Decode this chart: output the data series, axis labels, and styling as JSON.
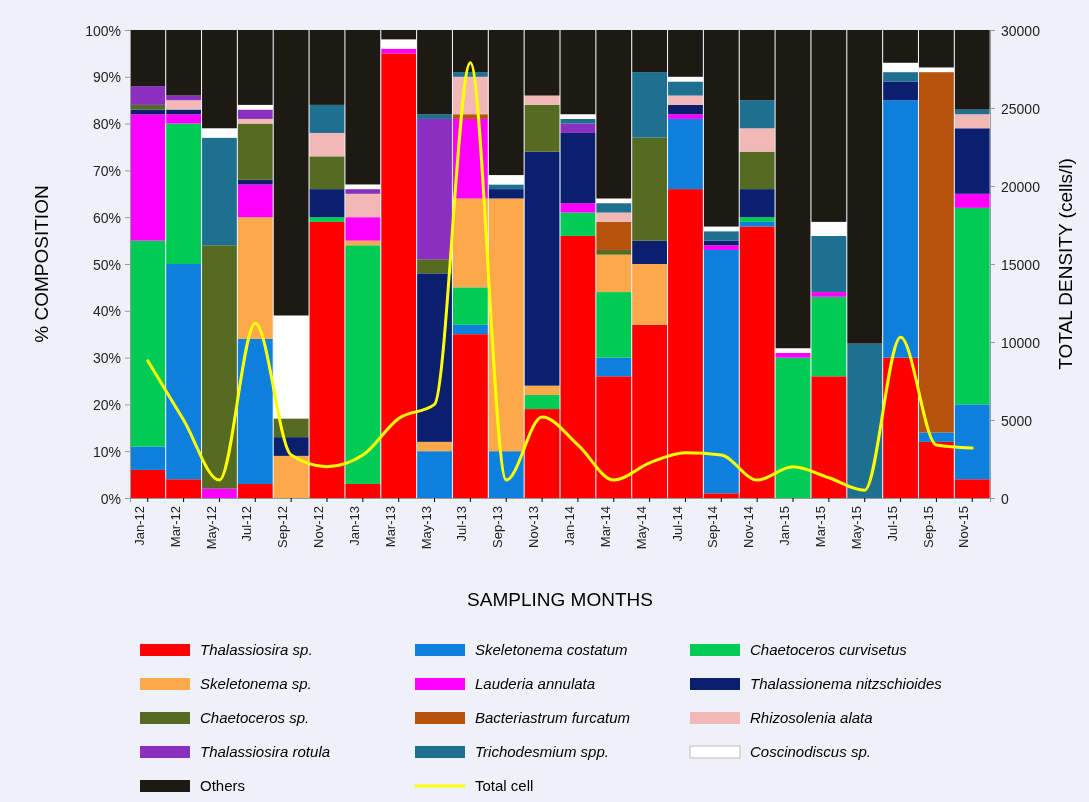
{
  "chart_data": {
    "type": "bar",
    "stacked": true,
    "xlabel": "SAMPLING MONTHS",
    "ylabel": "% COMPOSITION",
    "y2label": "TOTAL DENSITY (cells/l)",
    "categories": [
      "Jan-12",
      "Mar-12",
      "May-12",
      "Jul-12",
      "Sep-12",
      "Nov-12",
      "Jan-13",
      "Mar-13",
      "May-13",
      "Jul-13",
      "Sep-13",
      "Nov-13",
      "Jan-14",
      "Mar-14",
      "May-14",
      "Jul-14",
      "Sep-14",
      "Nov-14",
      "Jan-15",
      "Mar-15",
      "May-15",
      "Jul-15",
      "Sep-15",
      "Nov-15"
    ],
    "ylim": [
      0,
      100
    ],
    "yticks": [
      {
        "value": 0,
        "label": "0%"
      },
      {
        "value": 10,
        "label": "10%"
      },
      {
        "value": 20,
        "label": "20%"
      },
      {
        "value": 30,
        "label": "30%"
      },
      {
        "value": 40,
        "label": "40%"
      },
      {
        "value": 50,
        "label": "50%"
      },
      {
        "value": 60,
        "label": "60%"
      },
      {
        "value": 70,
        "label": "70%"
      },
      {
        "value": 80,
        "label": "80%"
      },
      {
        "value": 90,
        "label": "90%"
      },
      {
        "value": 100,
        "label": "100%"
      }
    ],
    "y2lim": [
      0,
      30000
    ],
    "y2ticks": [
      0,
      5000,
      10000,
      15000,
      20000,
      25000,
      30000
    ],
    "legend": "bottom",
    "series": [
      {
        "name": "Thalassiosira sp.",
        "color": "#ff0000",
        "values": [
          6,
          4,
          0,
          3,
          0,
          59,
          3,
          95,
          0,
          35,
          0,
          19,
          56,
          26,
          37,
          66,
          1,
          58,
          0,
          26,
          0,
          30,
          12,
          4
        ]
      },
      {
        "name": "Skeletonema costatum",
        "color": "#0d7fdc",
        "values": [
          5,
          46,
          0,
          31,
          0,
          0,
          0,
          0,
          10,
          2,
          10,
          0,
          0,
          4,
          0,
          15,
          52,
          1,
          0,
          0,
          0,
          55,
          2,
          16
        ]
      },
      {
        "name": "Chaetoceros curvisetus",
        "color": "#00cc55",
        "values": [
          44,
          30,
          0,
          0,
          0,
          1,
          51,
          0,
          0,
          8,
          0,
          3,
          5,
          14,
          0,
          0,
          0,
          1,
          30,
          17,
          0,
          0,
          0,
          42
        ]
      },
      {
        "name": "Skeletonema sp.",
        "color": "#fba94b",
        "values": [
          0,
          0,
          0,
          26,
          9,
          0,
          1,
          0,
          2,
          19,
          54,
          2,
          0,
          8,
          13,
          0,
          0,
          0,
          0,
          0,
          0,
          0,
          0,
          0
        ]
      },
      {
        "name": "Lauderia annulata",
        "color": "#ff00ff",
        "values": [
          27,
          2,
          2,
          7,
          0,
          0,
          5,
          1,
          0,
          17,
          0,
          0,
          2,
          0,
          0,
          1,
          1,
          0,
          1,
          1,
          0,
          0,
          0,
          3
        ]
      },
      {
        "name": "Thalassionema nitzschioides",
        "color": "#0a1f6e",
        "values": [
          1,
          1,
          0,
          1,
          4,
          6,
          0,
          0,
          36,
          0,
          2,
          50,
          15,
          0,
          5,
          2,
          1,
          6,
          0,
          0,
          0,
          4,
          0,
          14
        ]
      },
      {
        "name": "Chaetoceros sp.",
        "color": "#556b22",
        "values": [
          1,
          0,
          52,
          12,
          4,
          7,
          0,
          0,
          3,
          0,
          0,
          10,
          0,
          1,
          22,
          0,
          0,
          8,
          0,
          0,
          0,
          0,
          0,
          0
        ]
      },
      {
        "name": "Bacteriastrum furcatum",
        "color": "#b5520c",
        "values": [
          0,
          0,
          0,
          0,
          0,
          0,
          0,
          0,
          0,
          1,
          0,
          0,
          0,
          6,
          0,
          0,
          0,
          0,
          0,
          0,
          0,
          0,
          77,
          0
        ]
      },
      {
        "name": "Rhizosolenia alata",
        "color": "#f2b8b5",
        "values": [
          0,
          2,
          0,
          1,
          0,
          5,
          5,
          0,
          0,
          8,
          0,
          2,
          0,
          2,
          0,
          2,
          0,
          5,
          0,
          0,
          0,
          0,
          0,
          3
        ]
      },
      {
        "name": "Thalassiosira rotula",
        "color": "#8a2fc0",
        "values": [
          4,
          1,
          0,
          2,
          0,
          0,
          1,
          0,
          30,
          0,
          0,
          0,
          2,
          0,
          0,
          0,
          0,
          0,
          0,
          0,
          0,
          0,
          0,
          0
        ]
      },
      {
        "name": "Trichodesmium spp.",
        "color": "#1e7090",
        "values": [
          0,
          0,
          23,
          0,
          0,
          6,
          0,
          0,
          1,
          1,
          1,
          0,
          1,
          2,
          14,
          3,
          2,
          6,
          0,
          12,
          33,
          2,
          0,
          1
        ]
      },
      {
        "name": "Coscinodiscus sp.",
        "color": "#ffffff",
        "values": [
          0,
          0,
          2,
          1,
          22,
          0,
          1,
          2,
          0,
          0,
          2,
          0,
          1,
          1,
          0,
          1,
          1,
          0,
          1,
          3,
          0,
          2,
          1,
          0
        ]
      },
      {
        "name": "Others",
        "color": "#1c1a12",
        "values": [
          12,
          14,
          21,
          16,
          61,
          16,
          33,
          2,
          18,
          9,
          31,
          14,
          18,
          36,
          9,
          10,
          42,
          15,
          68,
          41,
          67,
          7,
          8,
          17
        ]
      },
      {
        "name": "Total cell",
        "type": "line",
        "axis": "y2",
        "color": "#ffff00",
        "values": [
          8800,
          5000,
          1150,
          11200,
          2750,
          2000,
          2750,
          5100,
          6000,
          27900,
          1150,
          5200,
          3400,
          1150,
          2250,
          2900,
          2750,
          1150,
          2000,
          1300,
          500,
          10300,
          3400,
          3200
        ]
      }
    ]
  }
}
